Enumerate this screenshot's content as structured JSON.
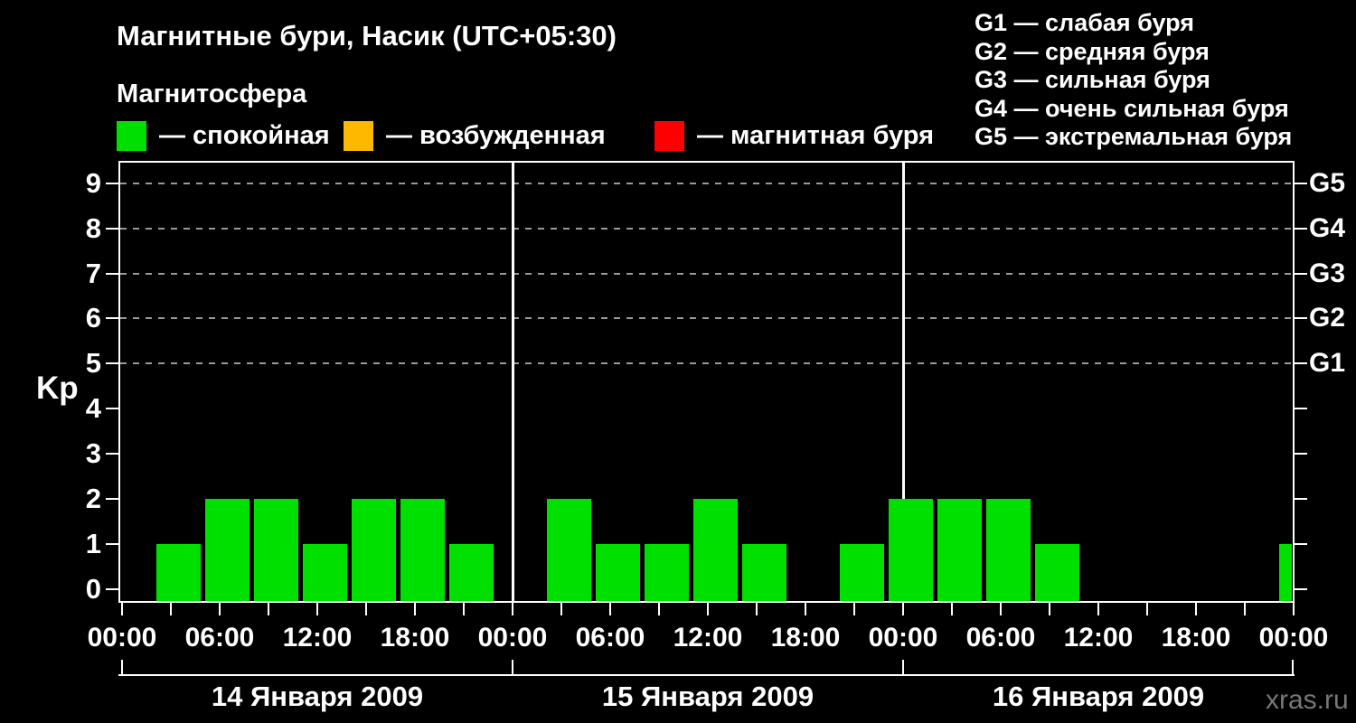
{
  "title": "Магнитные бури, Насик (UTC+05:30)",
  "subtitle": "Магнитосфера",
  "legend": {
    "items": [
      {
        "id": "quiet",
        "label": "— спокойная",
        "color": "#00e000"
      },
      {
        "id": "excited",
        "label": "— возбужденная",
        "color": "#ffb800"
      },
      {
        "id": "storm",
        "label": "— магнитная буря",
        "color": "#ff0000"
      }
    ]
  },
  "g_scale_legend": {
    "lines": [
      "G1 — слабая буря",
      "G2 — средняя буря",
      "G3 — сильная буря",
      "G4 — очень сильная буря",
      "G5 — экстремальная буря"
    ]
  },
  "watermark": "xras.ru",
  "colors": {
    "background": "#000000",
    "text": "#ffffff",
    "frame": "#ffffff",
    "grid_dashed": "#999999",
    "day_separator": "#ffffff",
    "watermark": "#777777"
  },
  "chart_data": {
    "type": "bar",
    "title": "Магнитные бури, Насик (UTC+05:30)",
    "ylabel": "Kp",
    "xlabel": "",
    "ylim": [
      0,
      9.5
    ],
    "y_ticks": [
      0,
      1,
      2,
      3,
      4,
      5,
      6,
      7,
      8,
      9
    ],
    "grid": "horizontal dashed lines at Kp 5,6,7,8,9",
    "legend_position": "top",
    "right_axis_ticks": [
      {
        "label": "G1",
        "kp": 5
      },
      {
        "label": "G2",
        "kp": 6
      },
      {
        "label": "G3",
        "kp": 7
      },
      {
        "label": "G4",
        "kp": 8
      },
      {
        "label": "G5",
        "kp": 9
      }
    ],
    "x_tick_labels": [
      "00:00",
      "06:00",
      "12:00",
      "18:00",
      "00:00",
      "06:00",
      "12:00",
      "18:00",
      "00:00",
      "06:00",
      "12:00",
      "18:00",
      "00:00"
    ],
    "slot_duration_hours": 3,
    "days": [
      {
        "date": "14 Января 2009",
        "kp_values": [
          0,
          1,
          2,
          2,
          1,
          2,
          2,
          1
        ]
      },
      {
        "date": "15 Января 2009",
        "kp_values": [
          0,
          2,
          1,
          1,
          2,
          1,
          0,
          1
        ]
      },
      {
        "date": "16 Января 2009",
        "kp_values": [
          2,
          2,
          2,
          1,
          0,
          0,
          0,
          0
        ]
      }
    ],
    "next_day_partial_kp": 1,
    "color_rules": {
      "quiet_kp_max": 3,
      "excited_kp": 4,
      "storm_kp_min": 5
    }
  }
}
